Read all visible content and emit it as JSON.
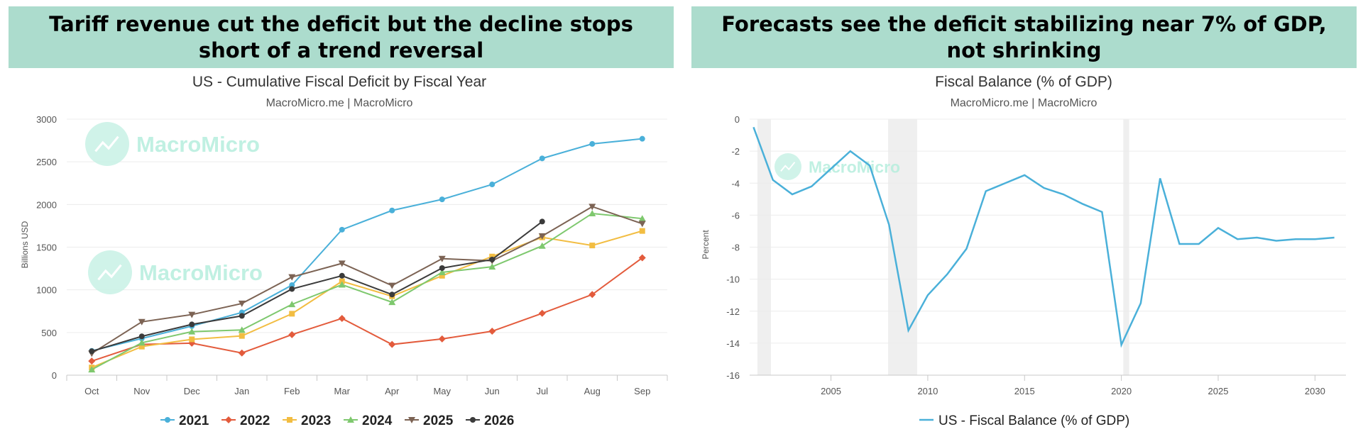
{
  "left_panel": {
    "banner": "Tariff revenue cut the deficit but the decline stops short of a trend reversal",
    "chart_data": {
      "type": "line",
      "title": "US - Cumulative Fiscal Deficit by Fiscal Year",
      "subtitle": "MacroMicro.me | MacroMicro",
      "watermark": "MacroMicro",
      "ylabel": "Billions USD",
      "ylim": [
        0,
        3000
      ],
      "yticks": [
        0,
        500,
        1000,
        1500,
        2000,
        2500,
        3000
      ],
      "categories": [
        "Oct",
        "Nov",
        "Dec",
        "Jan",
        "Feb",
        "Mar",
        "Apr",
        "May",
        "Jun",
        "Jul",
        "Aug",
        "Sep"
      ],
      "grid": true,
      "legend_position": "bottom",
      "series": [
        {
          "name": "2021",
          "color": "#4ab0d9",
          "marker": "circle",
          "values": [
            285,
            430,
            575,
            735,
            1055,
            1705,
            1930,
            2060,
            2235,
            2540,
            2710,
            2770
          ]
        },
        {
          "name": "2022",
          "color": "#e35b3c",
          "marker": "diamond",
          "values": [
            165,
            360,
            375,
            260,
            475,
            665,
            360,
            425,
            515,
            725,
            945,
            1375
          ]
        },
        {
          "name": "2023",
          "color": "#f2bd42",
          "marker": "square",
          "values": [
            90,
            335,
            420,
            460,
            720,
            1100,
            925,
            1165,
            1390,
            1615,
            1520,
            1690
          ]
        },
        {
          "name": "2024",
          "color": "#7ec86e",
          "marker": "triangle-up",
          "values": [
            65,
            380,
            510,
            530,
            830,
            1060,
            855,
            1205,
            1270,
            1515,
            1895,
            1835
          ]
        },
        {
          "name": "2025",
          "color": "#7c6354",
          "marker": "triangle-down",
          "values": [
            255,
            625,
            710,
            840,
            1150,
            1310,
            1050,
            1365,
            1340,
            1630,
            1975,
            1775
          ]
        },
        {
          "name": "2026",
          "color": "#3b3b3b",
          "marker": "circle",
          "values": [
            280,
            455,
            595,
            695,
            1010,
            1165,
            945,
            1255,
            1355,
            1800,
            null,
            null
          ]
        }
      ]
    }
  },
  "right_panel": {
    "banner": "Forecasts see the deficit stabilizing near 7% of GDP, not shrinking",
    "chart_data": {
      "type": "line",
      "title": "Fiscal Balance (% of GDP)",
      "subtitle": "MacroMicro.me | MacroMicro",
      "watermark": "MacroMicro",
      "ylabel": "Percent",
      "ylim": [
        -16,
        0
      ],
      "yticks": [
        0,
        -2,
        -4,
        -6,
        -8,
        -10,
        -12,
        -14,
        -16
      ],
      "xlim": [
        2000.8,
        2031.6
      ],
      "xticks": [
        2005,
        2010,
        2015,
        2020,
        2025,
        2030
      ],
      "grid": true,
      "legend_position": "bottom",
      "recession_bands": [
        [
          2001.2,
          2001.9
        ],
        [
          2007.95,
          2009.45
        ],
        [
          2020.1,
          2020.4
        ]
      ],
      "series": [
        {
          "name": "US - Fiscal Balance (% of GDP)",
          "color": "#4ab0d9",
          "x": [
            2001,
            2002,
            2003,
            2004,
            2005,
            2006,
            2007,
            2008,
            2009,
            2010,
            2011,
            2012,
            2013,
            2014,
            2015,
            2016,
            2017,
            2018,
            2019,
            2020,
            2021,
            2022,
            2023,
            2024,
            2025,
            2026,
            2027,
            2028,
            2029,
            2030,
            2031
          ],
          "values": [
            -0.5,
            -3.8,
            -4.7,
            -4.2,
            -3.1,
            -2.0,
            -2.9,
            -6.6,
            -13.2,
            -11.0,
            -9.7,
            -8.1,
            -4.5,
            -4.0,
            -3.5,
            -4.3,
            -4.7,
            -5.3,
            -5.8,
            -14.1,
            -11.5,
            -3.7,
            -7.8,
            -7.8,
            -6.8,
            -7.5,
            -7.4,
            -7.6,
            -7.5,
            -7.5,
            -7.4
          ]
        }
      ]
    }
  }
}
